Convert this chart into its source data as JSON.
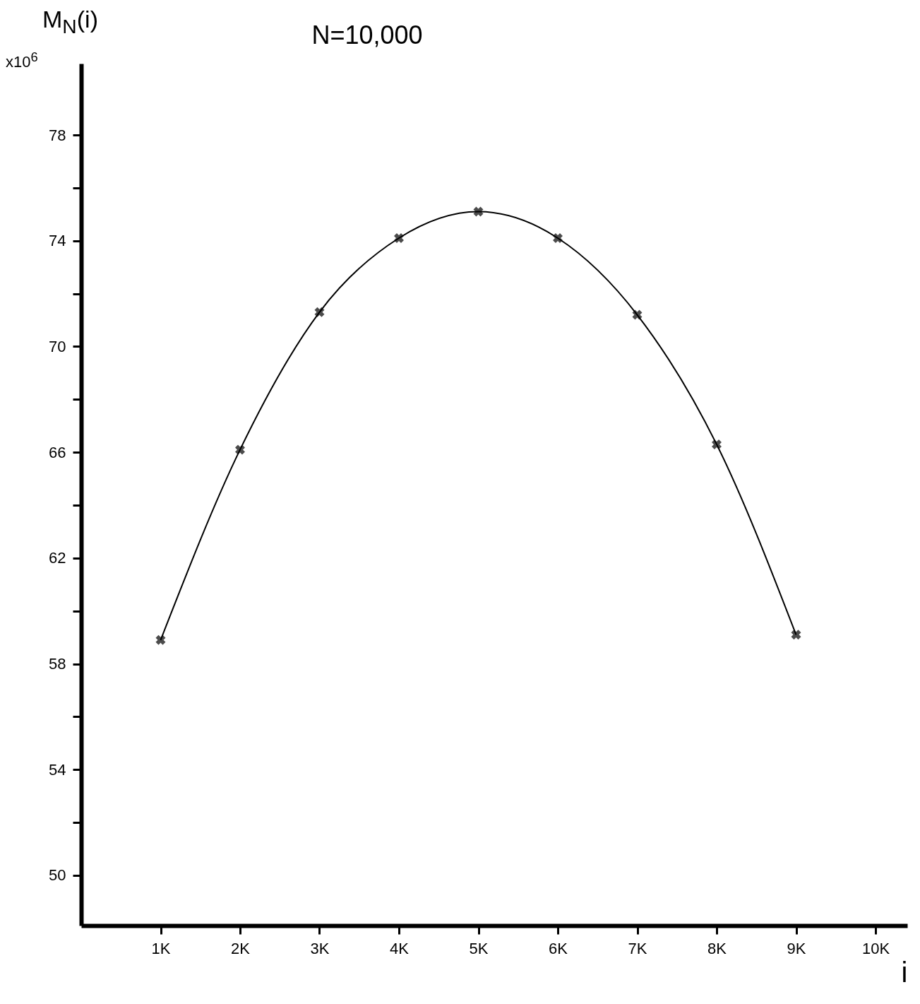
{
  "chart_data": {
    "type": "line",
    "title": "N=10,000",
    "xlabel": "i",
    "ylabel": "M$_{N}$(i)",
    "annotations": [
      "x10$^{6}$"
    ],
    "x": [
      1000,
      2000,
      3000,
      4000,
      5000,
      6000,
      7000,
      8000,
      9000
    ],
    "series": [
      {
        "color": "#000000",
        "values": [
          58.9,
          66.1,
          71.3,
          74.1,
          75.1,
          74.1,
          71.2,
          66.3,
          59.1
        ]
      }
    ],
    "xlim": [
      0,
      10400
    ],
    "ylim": [
      48.1,
      80.7
    ],
    "xticks": [
      {
        "value": 1000,
        "label": "1K"
      },
      {
        "value": 2000,
        "label": "2K"
      },
      {
        "value": 3000,
        "label": "3K"
      },
      {
        "value": 4000,
        "label": "4K"
      },
      {
        "value": 5000,
        "label": "5K"
      },
      {
        "value": 6000,
        "label": "6K"
      },
      {
        "value": 7000,
        "label": "7K"
      },
      {
        "value": 8000,
        "label": "8K"
      },
      {
        "value": 9000,
        "label": "9K"
      },
      {
        "value": 10000,
        "label": "10K"
      }
    ],
    "yticks": [
      50,
      {
        "value": 52,
        "label": null
      },
      54,
      {
        "value": 56,
        "label": null
      },
      58,
      {
        "value": 60,
        "label": null
      },
      62,
      {
        "value": 64,
        "label": null
      },
      66,
      {
        "value": 68,
        "label": null
      },
      70,
      {
        "value": 72,
        "label": null
      },
      74,
      {
        "value": 76,
        "label": null
      },
      78
    ],
    "marker": "cross",
    "line_style": "solid"
  }
}
